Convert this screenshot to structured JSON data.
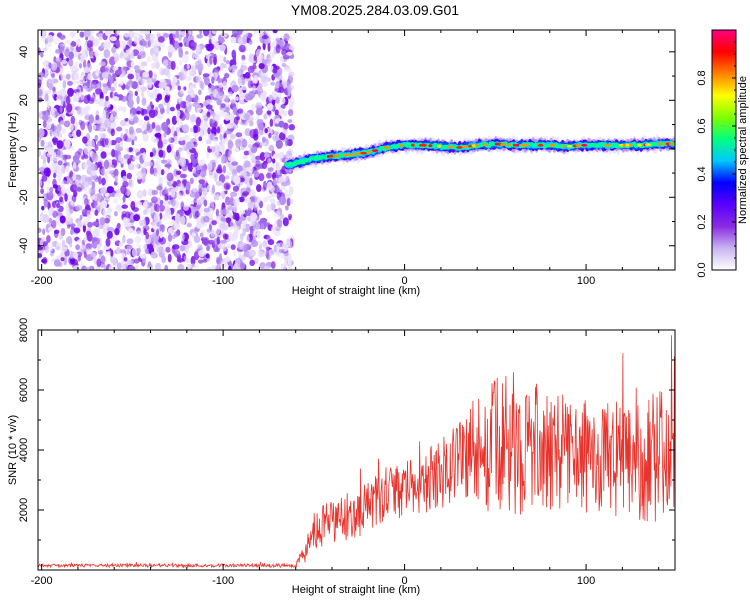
{
  "title": "YM08.2025.284.03.09.G01",
  "chart_data": [
    {
      "type": "heatmap",
      "xlabel": "Height of straight line (km)",
      "ylabel": "Frequency (Hz)",
      "xlim": [
        -202,
        149
      ],
      "ylim": [
        -50,
        49
      ],
      "xticks": [
        -200,
        -100,
        0,
        100
      ],
      "yticks": [
        -40,
        -20,
        0,
        20,
        40
      ],
      "noise_region_x": [
        -202,
        -62
      ],
      "ridge": {
        "x": [
          -65,
          -60,
          -50,
          -40,
          -30,
          -20,
          -10,
          0,
          10,
          20,
          30,
          40,
          50,
          60,
          70,
          80,
          90,
          100,
          110,
          120,
          130,
          140,
          149
        ],
        "y": [
          -7,
          -6,
          -4,
          -3,
          -2.5,
          -1.5,
          0.5,
          1.5,
          1.5,
          1,
          0.5,
          1.5,
          2,
          1.5,
          1.5,
          1.5,
          1,
          1.5,
          1.5,
          1.5,
          1.5,
          2,
          2
        ]
      },
      "colorbar": {
        "label": "Normalized spectral amplitude",
        "range": [
          0,
          1
        ],
        "ticks": [
          "0.0",
          "0.2",
          "0.4",
          "0.6",
          "0.8"
        ],
        "tick_values": [
          0,
          0.2,
          0.4,
          0.6,
          0.8
        ],
        "colors": [
          "#ffffff",
          "#c9b4f2",
          "#8a2be2",
          "#5a00ff",
          "#0000ff",
          "#00c8ff",
          "#00ff80",
          "#80ff00",
          "#ffff00",
          "#ff8000",
          "#ff0000",
          "#ff0080"
        ]
      }
    },
    {
      "type": "line",
      "xlabel": "Height of straight line (km)",
      "ylabel": "SNR (10 * v/v)",
      "xlim": [
        -202,
        149
      ],
      "ylim": [
        0,
        8000
      ],
      "xticks": [
        -200,
        -100,
        0,
        100
      ],
      "yticks": [
        2000,
        4000,
        6000,
        8000
      ],
      "color": "#e8322b",
      "envelope": {
        "x": [
          -202,
          -60,
          -55,
          -50,
          -40,
          -30,
          -20,
          -10,
          0,
          10,
          20,
          25,
          30,
          40,
          50,
          60,
          70,
          80,
          90,
          100,
          110,
          120,
          130,
          140,
          149
        ],
        "mean": [
          150,
          150,
          600,
          1200,
          1600,
          1800,
          2100,
          2400,
          2700,
          2900,
          3200,
          3500,
          3800,
          4000,
          4100,
          4200,
          4100,
          4000,
          3900,
          3800,
          3700,
          3600,
          3700,
          3800,
          3900
        ],
        "spread": [
          50,
          60,
          400,
          700,
          800,
          800,
          900,
          900,
          900,
          1000,
          1200,
          1400,
          1600,
          1900,
          2300,
          2400,
          2200,
          2000,
          1900,
          1900,
          1900,
          2000,
          2100,
          2200,
          2300
        ]
      }
    }
  ]
}
